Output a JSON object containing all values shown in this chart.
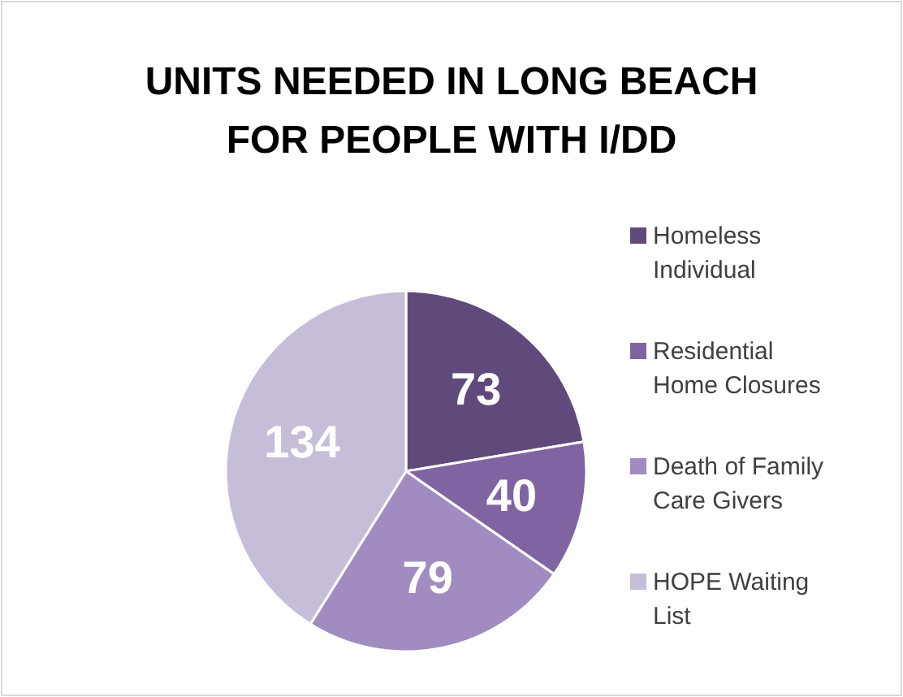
{
  "chart_data": {
    "type": "pie",
    "title": "UNITS NEEDED IN LONG BEACH FOR PEOPLE WITH I/DD",
    "categories": [
      "Homeless Individual",
      "Residential Home Closures",
      "Death of Family Care Givers",
      "HOPE Waiting List"
    ],
    "values": [
      73,
      40,
      79,
      134
    ],
    "colors": [
      "#604a7b",
      "#8064a2",
      "#a08cc0",
      "#c6bed8"
    ],
    "data_labels": true,
    "legend": "right"
  }
}
